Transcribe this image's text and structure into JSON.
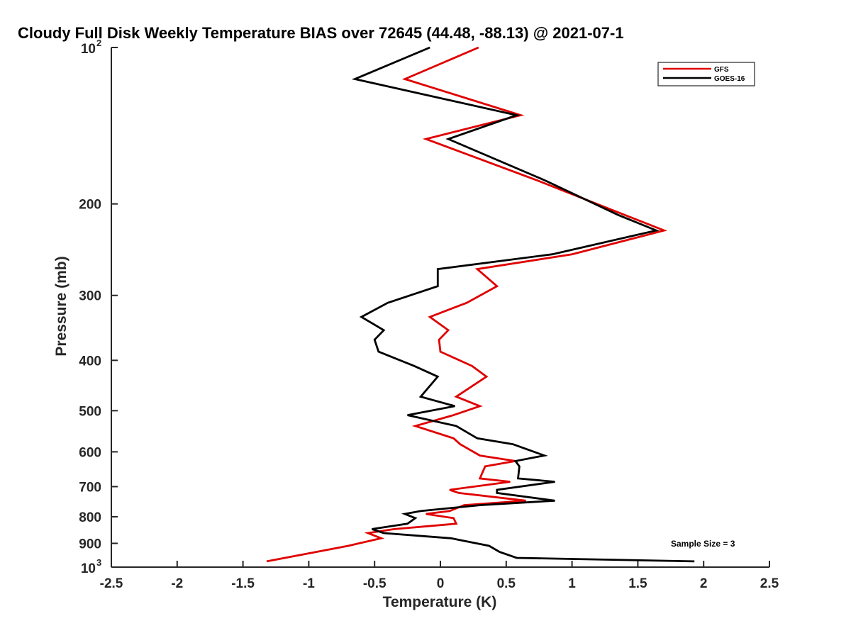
{
  "chart_data": {
    "type": "line",
    "title": "Cloudy Full Disk Weekly Temperature BIAS over 72645 (44.48, -88.13) @ 2021-07-1",
    "xlabel": "Temperature (K)",
    "ylabel": "Pressure (mb)",
    "xlim": [
      -2.5,
      2.5
    ],
    "ylim": [
      1000,
      100
    ],
    "y_scale": "log",
    "y_reversed": true,
    "grid": false,
    "legend_position": "top-right",
    "x_ticks": [
      "-2.5",
      "-2",
      "-1.5",
      "-1",
      "-0.5",
      "0",
      "0.5",
      "1",
      "1.5",
      "2",
      "2.5"
    ],
    "x_tick_values": [
      -2.5,
      -2,
      -1.5,
      -1,
      -0.5,
      0,
      0.5,
      1,
      1.5,
      2,
      2.5
    ],
    "y_ticks": [
      {
        "value": 100,
        "base": "10",
        "exp": "2"
      },
      {
        "value": 200,
        "label": "200"
      },
      {
        "value": 300,
        "label": "300"
      },
      {
        "value": 400,
        "label": "400"
      },
      {
        "value": 500,
        "label": "500"
      },
      {
        "value": 600,
        "label": "600"
      },
      {
        "value": 700,
        "label": "700"
      },
      {
        "value": 800,
        "label": "800"
      },
      {
        "value": 900,
        "label": "900"
      },
      {
        "value": 1000,
        "base": "10",
        "exp": "3"
      }
    ],
    "annotation": "Sample Size = 3",
    "series": [
      {
        "name": "GFS",
        "color": "#e00000",
        "points": [
          [
            0.29,
            100
          ],
          [
            -0.27,
            115
          ],
          [
            0.61,
            135
          ],
          [
            -0.11,
            150
          ],
          [
            0.73,
            180
          ],
          [
            1.4,
            210
          ],
          [
            1.7,
            225
          ],
          [
            1.0,
            250
          ],
          [
            0.28,
            267
          ],
          [
            0.43,
            288
          ],
          [
            0.2,
            310
          ],
          [
            -0.08,
            330
          ],
          [
            0.06,
            350
          ],
          [
            -0.01,
            365
          ],
          [
            0.0,
            385
          ],
          [
            0.24,
            410
          ],
          [
            0.35,
            430
          ],
          [
            0.12,
            470
          ],
          [
            0.3,
            490
          ],
          [
            0.1,
            510
          ],
          [
            -0.19,
            535
          ],
          [
            0.1,
            565
          ],
          [
            0.15,
            580
          ],
          [
            0.3,
            610
          ],
          [
            0.57,
            625
          ],
          [
            0.34,
            640
          ],
          [
            0.3,
            675
          ],
          [
            0.53,
            685
          ],
          [
            0.07,
            710
          ],
          [
            0.14,
            720
          ],
          [
            0.65,
            745
          ],
          [
            0.18,
            760
          ],
          [
            0.07,
            780
          ],
          [
            -0.11,
            790
          ],
          [
            0.1,
            805
          ],
          [
            0.12,
            825
          ],
          [
            -0.35,
            845
          ],
          [
            -0.55,
            860
          ],
          [
            -0.45,
            880
          ],
          [
            -0.7,
            910
          ],
          [
            -1.32,
            975
          ]
        ]
      },
      {
        "name": "GOES-16",
        "color": "#000000",
        "points": [
          [
            -0.08,
            100
          ],
          [
            -0.65,
            115
          ],
          [
            0.58,
            135
          ],
          [
            0.06,
            150
          ],
          [
            0.79,
            180
          ],
          [
            1.35,
            210
          ],
          [
            1.64,
            225
          ],
          [
            0.85,
            250
          ],
          [
            -0.02,
            267
          ],
          [
            -0.02,
            288
          ],
          [
            -0.4,
            310
          ],
          [
            -0.6,
            330
          ],
          [
            -0.43,
            350
          ],
          [
            -0.5,
            365
          ],
          [
            -0.47,
            385
          ],
          [
            -0.2,
            410
          ],
          [
            -0.02,
            430
          ],
          [
            -0.15,
            470
          ],
          [
            0.11,
            490
          ],
          [
            -0.25,
            510
          ],
          [
            0.12,
            535
          ],
          [
            0.28,
            565
          ],
          [
            0.55,
            580
          ],
          [
            0.79,
            610
          ],
          [
            0.57,
            625
          ],
          [
            0.6,
            640
          ],
          [
            0.59,
            675
          ],
          [
            0.87,
            685
          ],
          [
            0.43,
            710
          ],
          [
            0.43,
            720
          ],
          [
            0.87,
            745
          ],
          [
            0.3,
            760
          ],
          [
            -0.15,
            780
          ],
          [
            -0.27,
            790
          ],
          [
            -0.19,
            805
          ],
          [
            -0.25,
            825
          ],
          [
            -0.52,
            845
          ],
          [
            -0.43,
            860
          ],
          [
            0.08,
            880
          ],
          [
            0.37,
            910
          ],
          [
            0.45,
            935
          ],
          [
            0.58,
            960
          ],
          [
            1.93,
            975
          ]
        ]
      }
    ]
  }
}
